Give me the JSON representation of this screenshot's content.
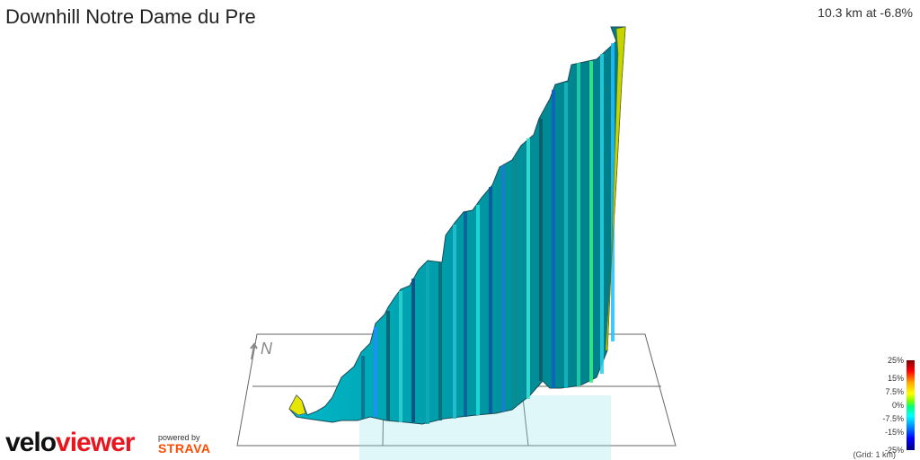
{
  "header": {
    "title": "Downhill Notre Dame du Pre",
    "summary": "10.3 km at -6.8%"
  },
  "compass": {
    "label": "N",
    "arrow_icon": "north-arrow-icon"
  },
  "legend": {
    "labels": [
      "25%",
      "15%",
      "7.5%",
      "0%",
      "-7.5%",
      "-15%",
      "-25%"
    ],
    "grid_note": "(Grid: 1 km)",
    "colors": [
      "#800000",
      "#ff0000",
      "#ffff00",
      "#00ff80",
      "#00ffff",
      "#0000ff",
      "#00007f"
    ]
  },
  "branding": {
    "velo": "velo",
    "viewer": "viewer",
    "powered_by": "powered by",
    "strava": "STRAVA",
    "accent": "#e8171f",
    "strava_color": "#fc4c02"
  },
  "chart_data": {
    "type": "area",
    "distance_km": 10.3,
    "avg_gradient_pct": -6.8
  }
}
